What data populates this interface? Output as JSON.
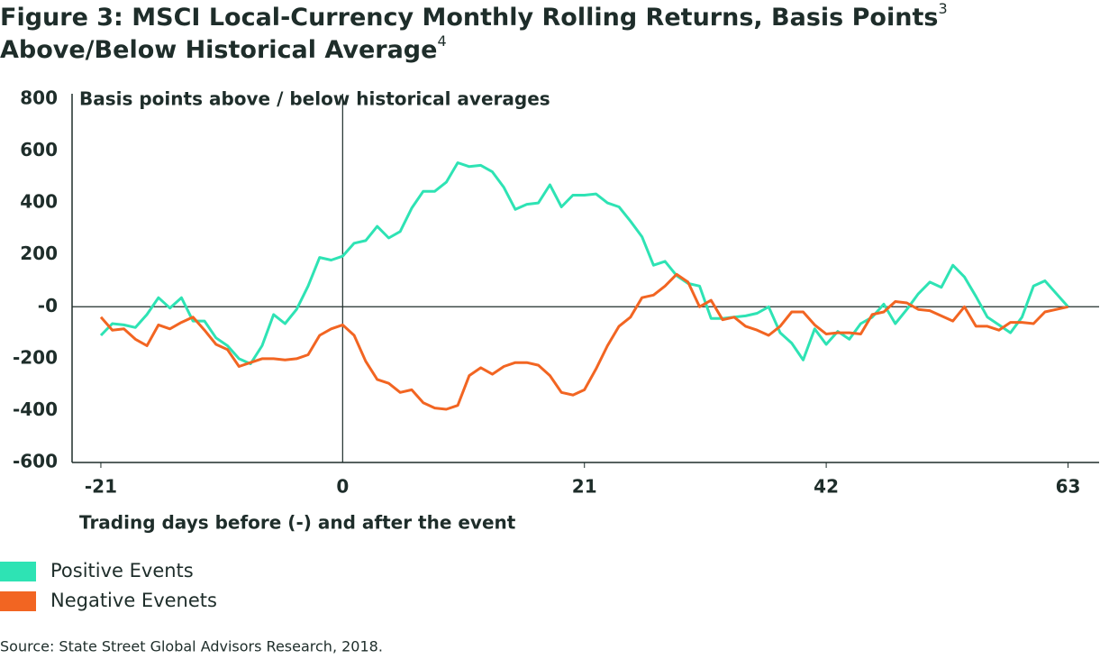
{
  "chart_data": {
    "type": "line",
    "title": "Figure 3: MSCI Local-Currency Monthly Rolling Returns, Basis Points",
    "title_note": "3",
    "subtitle": "Above/Below Historical Average",
    "subtitle_note": "4",
    "y_label": "Basis points above / below historical averages",
    "x_label": "Trading days before (-) and after the event",
    "source": "Source: State Street Global Advisors Research, 2018.",
    "x": [
      -21,
      -20,
      -19,
      -18,
      -17,
      -16,
      -15,
      -14,
      -13,
      -12,
      -11,
      -10,
      -9,
      -8,
      -7,
      -6,
      -5,
      -4,
      -3,
      -2,
      -1,
      0,
      1,
      2,
      3,
      4,
      5,
      6,
      7,
      8,
      9,
      10,
      11,
      12,
      13,
      14,
      15,
      16,
      17,
      18,
      19,
      20,
      21,
      22,
      23,
      24,
      25,
      26,
      27,
      28,
      29,
      30,
      31,
      32,
      33,
      34,
      35,
      36,
      37,
      38,
      39,
      40,
      41,
      42,
      43,
      44,
      45,
      46,
      47,
      48,
      49,
      50,
      51,
      52,
      53,
      54,
      55,
      56,
      57,
      58,
      59,
      60,
      61,
      62,
      63
    ],
    "series": [
      {
        "name": "Positive Events",
        "color": "#2ee3b4",
        "values": [
          -110,
          -65,
          -70,
          -80,
          -30,
          35,
          -5,
          35,
          -55,
          -55,
          -120,
          -150,
          -200,
          -220,
          -150,
          -30,
          -65,
          -10,
          80,
          190,
          180,
          195,
          245,
          255,
          310,
          265,
          290,
          380,
          445,
          445,
          480,
          555,
          540,
          545,
          520,
          460,
          375,
          395,
          400,
          470,
          385,
          430,
          430,
          435,
          400,
          385,
          330,
          270,
          160,
          175,
          120,
          90,
          80,
          -45,
          -45,
          -40,
          -35,
          -25,
          0,
          -100,
          -140,
          -205,
          -85,
          -145,
          -95,
          -125,
          -65,
          -40,
          10,
          -65,
          -10,
          50,
          95,
          75,
          160,
          115,
          40,
          -40,
          -70,
          -100,
          -40,
          80,
          100,
          50,
          0
        ]
      },
      {
        "name": "Negative Evenets",
        "color": "#f26522",
        "values": [
          -40,
          -90,
          -85,
          -125,
          -150,
          -70,
          -85,
          -60,
          -40,
          -90,
          -145,
          -165,
          -230,
          -215,
          -200,
          -200,
          -205,
          -200,
          -185,
          -110,
          -85,
          -70,
          -110,
          -210,
          -280,
          -295,
          -330,
          -320,
          -370,
          -390,
          -395,
          -380,
          -265,
          -235,
          -260,
          -230,
          -215,
          -215,
          -225,
          -265,
          -330,
          -340,
          -320,
          -240,
          -150,
          -75,
          -40,
          35,
          45,
          80,
          125,
          95,
          0,
          25,
          -50,
          -40,
          -75,
          -90,
          -110,
          -75,
          -20,
          -20,
          -70,
          -105,
          -100,
          -100,
          -105,
          -30,
          -20,
          20,
          15,
          -10,
          -15,
          -35,
          -55,
          0,
          -75,
          -75,
          -90,
          -60,
          -60,
          -65,
          -20,
          -10,
          0
        ]
      }
    ],
    "xlim": [
      -23.5,
      65.7
    ],
    "xticks": [
      -21,
      0,
      21,
      42,
      63
    ],
    "ylim": [
      -600,
      800
    ],
    "yticks": [
      -600,
      -400,
      -200,
      {
        "value": 0,
        "label": "-0"
      },
      200,
      400,
      600,
      800
    ]
  }
}
